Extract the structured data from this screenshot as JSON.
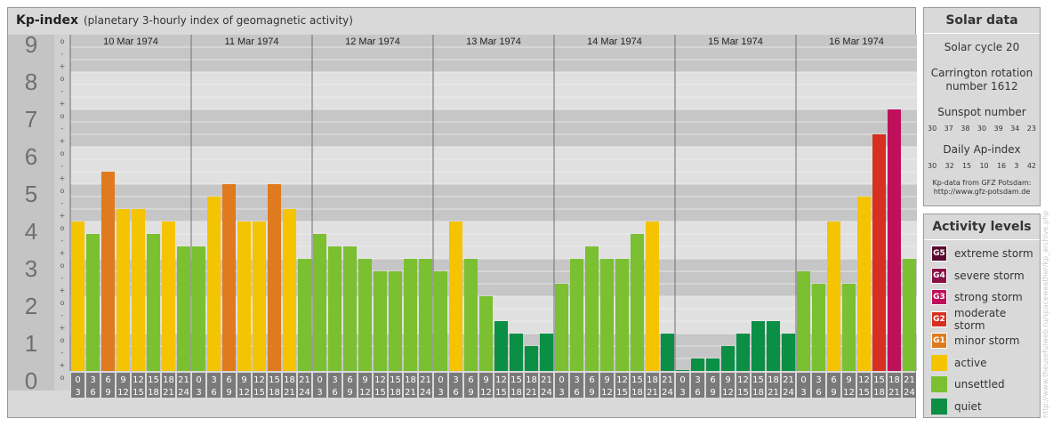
{
  "header": {
    "title": "Kp-index",
    "subtitle": "(planetary 3-hourly index of geomagnetic activity)"
  },
  "y_axis": {
    "labels": [
      "9",
      "8",
      "7",
      "6",
      "5",
      "4",
      "3",
      "2",
      "1",
      "0"
    ],
    "sub_markers": [
      "o",
      "-",
      "+",
      "o",
      "-",
      "+",
      "o",
      "-",
      "+",
      "o",
      "-",
      "+",
      "o",
      "-",
      "+",
      "o",
      "-",
      "+",
      "o",
      "-",
      "+",
      "o",
      "-",
      "+",
      "o",
      "-",
      "+",
      "o"
    ]
  },
  "x_axis": {
    "start_labels": [
      "0",
      "3",
      "6",
      "9",
      "12",
      "15",
      "18",
      "21"
    ],
    "end_labels": [
      "3",
      "6",
      "9",
      "12",
      "15",
      "18",
      "21",
      "24"
    ]
  },
  "colors": {
    "quiet": "#0a8f45",
    "unsettled": "#7ac030",
    "active": "#f5c400",
    "G1": "#e07a1f",
    "G2": "#d83020",
    "G3": "#c0105a",
    "G4": "#8a1048",
    "G5": "#5a0a30"
  },
  "chart_data": {
    "type": "bar",
    "title": "Kp-index",
    "subtitle": "(planetary 3-hourly index of geomagnetic activity)",
    "ylim": [
      0,
      9
    ],
    "days": [
      "10 Mar 1974",
      "11 Mar 1974",
      "12 Mar 1974",
      "13 Mar 1974",
      "14 Mar 1974",
      "15 Mar 1974",
      "16 Mar 1974"
    ],
    "categories": [
      "0-3",
      "3-6",
      "6-9",
      "9-12",
      "12-15",
      "15-18",
      "18-21",
      "21-24"
    ],
    "values": [
      [
        4.0,
        3.667,
        5.333,
        4.333,
        4.333,
        3.667,
        4.0,
        3.333
      ],
      [
        3.333,
        4.667,
        5.0,
        4.0,
        4.0,
        5.0,
        4.333,
        3.0
      ],
      [
        3.667,
        3.333,
        3.333,
        3.0,
        2.667,
        2.667,
        3.0,
        3.0
      ],
      [
        2.667,
        4.0,
        3.0,
        2.0,
        1.333,
        1.0,
        0.667,
        1.0
      ],
      [
        2.333,
        3.0,
        3.333,
        3.0,
        3.0,
        3.667,
        4.0,
        1.0
      ],
      [
        0.0,
        0.333,
        0.333,
        0.667,
        1.0,
        1.333,
        1.333,
        1.0
      ],
      [
        2.667,
        2.333,
        4.0,
        2.333,
        4.667,
        6.333,
        7.0,
        3.0
      ]
    ]
  },
  "solar": {
    "title": "Solar data",
    "cycle": "Solar cycle 20",
    "carrington_line1": "Carrington rotation",
    "carrington_line2": "number 1612",
    "sunspot_title": "Sunspot number",
    "sunspot_values": [
      "30",
      "37",
      "38",
      "30",
      "39",
      "34",
      "23"
    ],
    "ap_title": "Daily Ap-index",
    "ap_values": [
      "30",
      "32",
      "15",
      "10",
      "16",
      "3",
      "42"
    ],
    "source_line1": "Kp-data from GFZ Potsdam:",
    "source_line2": "http://www.gfz-potsdam.de"
  },
  "activity": {
    "title": "Activity levels",
    "items": [
      {
        "code": "G5",
        "label": "extreme storm",
        "color": "#5a0a30"
      },
      {
        "code": "G4",
        "label": "severe storm",
        "color": "#8a1048"
      },
      {
        "code": "G3",
        "label": "strong storm",
        "color": "#c0105a"
      },
      {
        "code": "G2",
        "label": "moderate storm",
        "color": "#d83020"
      },
      {
        "code": "G1",
        "label": "minor storm",
        "color": "#e07a1f"
      },
      {
        "code": "",
        "label": "active",
        "color": "#f5c400"
      },
      {
        "code": "",
        "label": "unsettled",
        "color": "#7ac030"
      },
      {
        "code": "",
        "label": "quiet",
        "color": "#0a8f45"
      }
    ]
  },
  "watermark": "http://www.theusefulweb.ru/spaceweather/kp_archive.php"
}
